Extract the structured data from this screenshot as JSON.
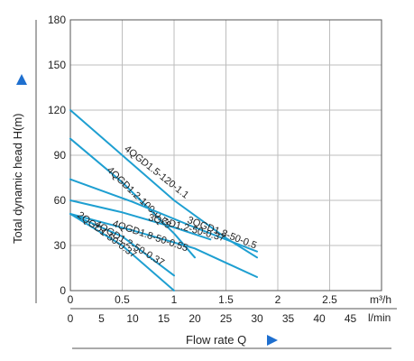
{
  "chart_data": {
    "type": "line",
    "title": "",
    "ylabel": "Total dynamic head H(m)",
    "xlabel": "Flow rate  Q",
    "x_units": [
      "m³/h",
      "l/min"
    ],
    "ylim": [
      0,
      180
    ],
    "xlim_m3h": [
      0,
      3
    ],
    "xlim_lmin": [
      0,
      50
    ],
    "yticks": [
      "0",
      "30",
      "60",
      "90",
      "120",
      "150",
      "180"
    ],
    "xticks_m3h": [
      "0",
      "0.5",
      "1",
      "1.5",
      "2",
      "2.5"
    ],
    "xticks_lmin": [
      "0",
      "5",
      "10",
      "15",
      "20",
      "25",
      "30",
      "35",
      "40",
      "45"
    ],
    "grid": true,
    "legend": "none",
    "series": [
      {
        "name": "4QGD1.5-120-1.1",
        "x": [
          0,
          0.5,
          1.0,
          1.5,
          1.8
        ],
        "y": [
          120,
          90,
          60,
          35,
          22
        ]
      },
      {
        "name": "4QGD1.2-100-0.75",
        "x": [
          0,
          0.5,
          1.0,
          1.2
        ],
        "y": [
          101,
          72,
          38,
          22
        ]
      },
      {
        "name": "3QGD1.8-50-0.5",
        "x": [
          0,
          0.6,
          1.2,
          1.8
        ],
        "y": [
          74,
          59,
          42,
          26
        ]
      },
      {
        "name": "3QGD1.2-50-0.37",
        "x": [
          0,
          0.5,
          1.0,
          1.35
        ],
        "y": [
          60,
          52,
          42,
          34
        ]
      },
      {
        "name": "4QGD1.8-50-0.55",
        "x": [
          0,
          0.6,
          1.2,
          1.8
        ],
        "y": [
          51,
          40,
          28,
          9
        ]
      },
      {
        "name": "4QGD1.2-50-0.37",
        "x": [
          0,
          0.5,
          1.0
        ],
        "y": [
          51,
          36,
          10
        ]
      },
      {
        "name": "2QGD1-50-0.37",
        "x": [
          0,
          0.5,
          1.0
        ],
        "y": [
          51,
          30,
          0
        ]
      }
    ]
  }
}
